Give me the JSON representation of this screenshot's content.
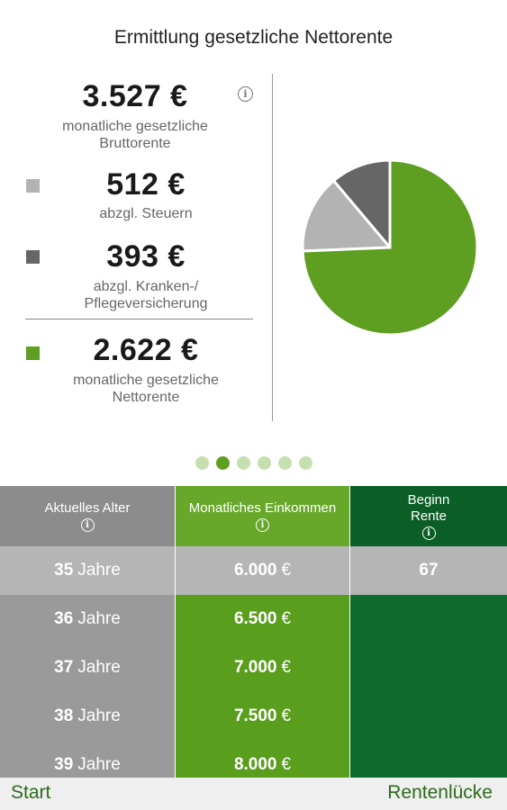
{
  "header": {
    "title": "Ermittlung gesetzliche Nettorente"
  },
  "summary": {
    "gross": {
      "amount": "3.527 €",
      "desc_line1": "monatliche gesetzliche",
      "desc_line2": "Bruttorente"
    },
    "taxes": {
      "amount": "512 €",
      "desc_line1": "abzgl. Steuern",
      "color": "#b3b3b3"
    },
    "insurance": {
      "amount": "393 €",
      "desc_line1": "abzgl. Kranken-/",
      "desc_line2": "Pflegeversicherung",
      "color": "#666666"
    },
    "net": {
      "amount": "2.622 €",
      "desc_line1": "monatliche gesetzliche",
      "desc_line2": "Nettorente",
      "color": "#5e9e20"
    },
    "info_icon": "info-circle-icon"
  },
  "chart_data": {
    "type": "pie",
    "slices": [
      {
        "label": "abzgl. Steuern",
        "value": 512,
        "color": "#b3b3b3"
      },
      {
        "label": "abzgl. Kranken-/Pflegeversicherung",
        "value": 393,
        "color": "#666666"
      },
      {
        "label": "monatliche gesetzliche Nettorente",
        "value": 2622,
        "color": "#5e9e20"
      }
    ]
  },
  "pager": {
    "count": 6,
    "active_index": 1
  },
  "table": {
    "headers": {
      "age": "Aktuelles Alter",
      "income": "Monatliches Einkommen",
      "retirement_line1": "Beginn",
      "retirement_line2": "Rente"
    },
    "selected": {
      "age": "35",
      "age_unit": "Jahre",
      "income": "6.000",
      "income_unit": "€",
      "retirement": "67"
    },
    "rows": [
      {
        "age": "36",
        "age_unit": "Jahre",
        "income": "6.500",
        "income_unit": "€"
      },
      {
        "age": "37",
        "age_unit": "Jahre",
        "income": "7.000",
        "income_unit": "€"
      },
      {
        "age": "38",
        "age_unit": "Jahre",
        "income": "7.500",
        "income_unit": "€"
      },
      {
        "age": "39",
        "age_unit": "Jahre",
        "income": "8.000",
        "income_unit": "€"
      }
    ]
  },
  "footer": {
    "left_label": "Start",
    "right_label": "Rentenlücke"
  }
}
